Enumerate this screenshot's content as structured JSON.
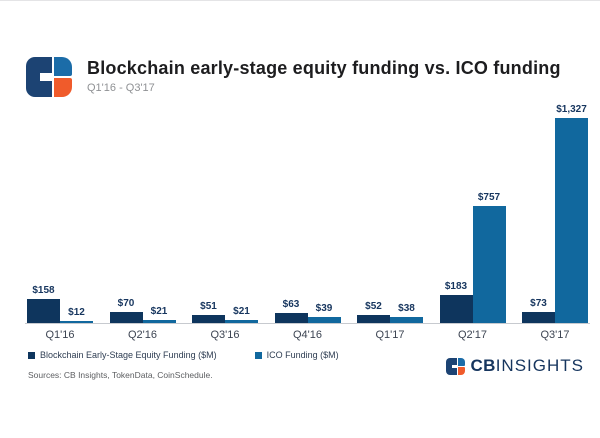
{
  "header": {
    "title": "Blockchain early-stage equity funding vs. ICO funding",
    "subtitle": "Q1'16 - Q3'17"
  },
  "chart_data": {
    "type": "bar",
    "title": "Blockchain early-stage equity funding vs. ICO funding",
    "subtitle": "Q1'16 - Q3'17",
    "categories": [
      "Q1'16",
      "Q2'16",
      "Q3'16",
      "Q4'16",
      "Q1'17",
      "Q2'17",
      "Q3'17"
    ],
    "series": [
      {
        "name": "Blockchain Early-Stage Equity Funding ($M)",
        "color": "#0e355d",
        "values": [
          158,
          70,
          51,
          63,
          52,
          183,
          73
        ],
        "labels": [
          "$158",
          "$70",
          "$51",
          "$63",
          "$52",
          "$183",
          "$73"
        ]
      },
      {
        "name": "ICO Funding ($M)",
        "color": "#11689e",
        "values": [
          12,
          21,
          21,
          39,
          38,
          757,
          1327
        ],
        "labels": [
          "$12",
          "$21",
          "$21",
          "$39",
          "$38",
          "$757",
          "$1,327"
        ]
      }
    ],
    "xlabel": "",
    "ylabel": "",
    "ylim": [
      0,
      1400
    ],
    "grid": false,
    "legend_position": "bottom",
    "data_labels": true
  },
  "footer": {
    "sources": "Sources: CB Insights, TokenData, CoinSchedule."
  },
  "branding": {
    "wordmark_bold": "CB",
    "wordmark_light": "INSIGHTS"
  },
  "colors": {
    "equity_bar": "#0e355d",
    "ico_bar": "#11689e",
    "logo_navy": "#1c4373",
    "logo_blue": "#1b6ca8",
    "logo_orange": "#f05b2b",
    "wordmark_navy": "#16355e"
  }
}
